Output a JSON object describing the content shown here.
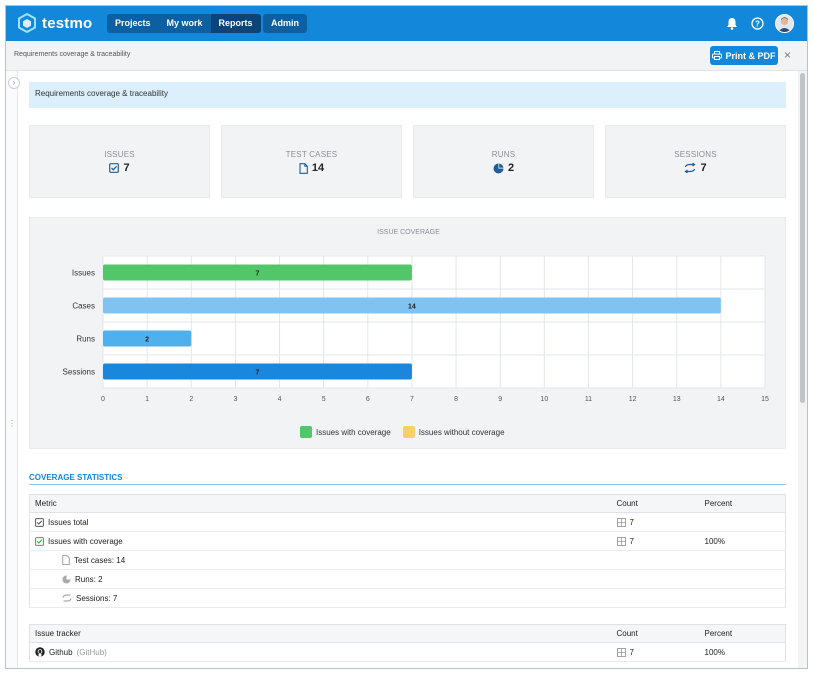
{
  "app": {
    "name": "testmo"
  },
  "nav": {
    "items": [
      "Projects",
      "My work",
      "Reports"
    ],
    "active": "Reports",
    "admin": "Admin"
  },
  "subheader": {
    "breadcrumb": "Requirements coverage & traceability",
    "print_label": "Print & PDF",
    "close": "×"
  },
  "banner": {
    "title": "Requirements coverage & traceability"
  },
  "stats": [
    {
      "label": "ISSUES",
      "value": "7",
      "icon": "checkbox-icon"
    },
    {
      "label": "TEST CASES",
      "value": "14",
      "icon": "document-icon"
    },
    {
      "label": "RUNS",
      "value": "2",
      "icon": "pie-icon"
    },
    {
      "label": "SESSIONS",
      "value": "7",
      "icon": "cycle-icon"
    }
  ],
  "chart_data": {
    "type": "bar",
    "orientation": "horizontal",
    "title": "ISSUE COVERAGE",
    "categories": [
      "Issues",
      "Cases",
      "Runs",
      "Sessions"
    ],
    "values": [
      7,
      14,
      2,
      7
    ],
    "bar_colors": [
      "#51c76a",
      "#80c3f1",
      "#4fb0ee",
      "#1a87dc"
    ],
    "xlim": [
      0,
      15
    ],
    "xticks": [
      "0",
      "1",
      "2",
      "3",
      "4",
      "5",
      "6",
      "7",
      "8",
      "9",
      "10",
      "11",
      "12",
      "13",
      "14",
      "15"
    ],
    "grid": true,
    "legend": [
      {
        "name": "Issues with coverage",
        "color": "#51c76a"
      },
      {
        "name": "Issues without coverage",
        "color": "#f9cf6a"
      }
    ],
    "legend_position": "bottom"
  },
  "coverage": {
    "title": "COVERAGE STATISTICS",
    "headers": {
      "metric": "Metric",
      "count": "Count",
      "percent": "Percent"
    },
    "rows": [
      {
        "metric": "Issues total",
        "count": "7",
        "percent": ""
      },
      {
        "metric": "Issues with coverage",
        "count": "7",
        "percent": "100%"
      }
    ],
    "subrows": [
      "Test cases: 14",
      "Runs: 2",
      "Sessions: 7"
    ]
  },
  "tracker": {
    "headers": {
      "name": "Issue tracker",
      "count": "Count",
      "percent": "Percent"
    },
    "rows": [
      {
        "name": "Github",
        "type": "(GitHub)",
        "count": "7",
        "percent": "100%"
      }
    ]
  }
}
